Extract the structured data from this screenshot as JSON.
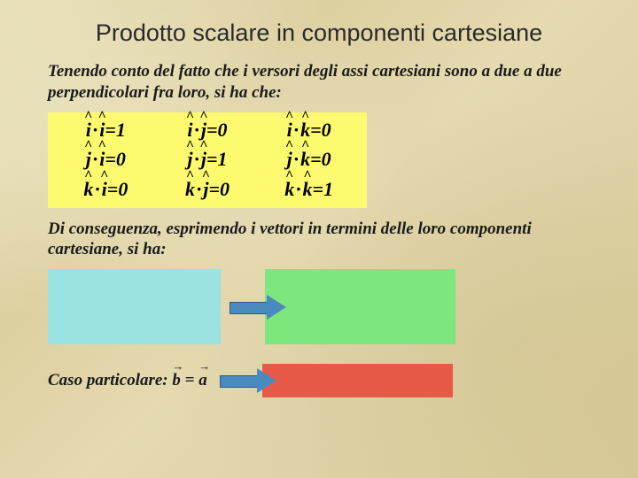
{
  "title": "Prodotto scalare in componenti cartesiane",
  "para1": "Tenendo conto del fatto che i versori degli assi cartesiani sono a due a due perpendicolari fra loro, si ha che:",
  "para2": "Di conseguenza, esprimendo i vettori in termini delle loro componenti cartesiane, si ha:",
  "caso_label": "Caso particolare: ",
  "vec_b": "b",
  "eq": " = ",
  "vec_a": "a",
  "matrix": {
    "cells": [
      {
        "l": "i",
        "r": "i",
        "v": "1"
      },
      {
        "l": "i",
        "r": "j",
        "v": "0"
      },
      {
        "l": "i",
        "r": "k",
        "v": "0"
      },
      {
        "l": "j",
        "r": "i",
        "v": "0"
      },
      {
        "l": "j",
        "r": "j",
        "v": "1"
      },
      {
        "l": "j",
        "r": "k",
        "v": "0"
      },
      {
        "l": "k",
        "r": "i",
        "v": "0"
      },
      {
        "l": "k",
        "r": "j",
        "v": "0"
      },
      {
        "l": "k",
        "r": "k",
        "v": "1"
      }
    ]
  },
  "colors": {
    "yellow": "#fefa70",
    "cyan": "#9be3e0",
    "green": "#7de67d",
    "red": "#e85a48",
    "arrow": "#4a8bbf"
  }
}
